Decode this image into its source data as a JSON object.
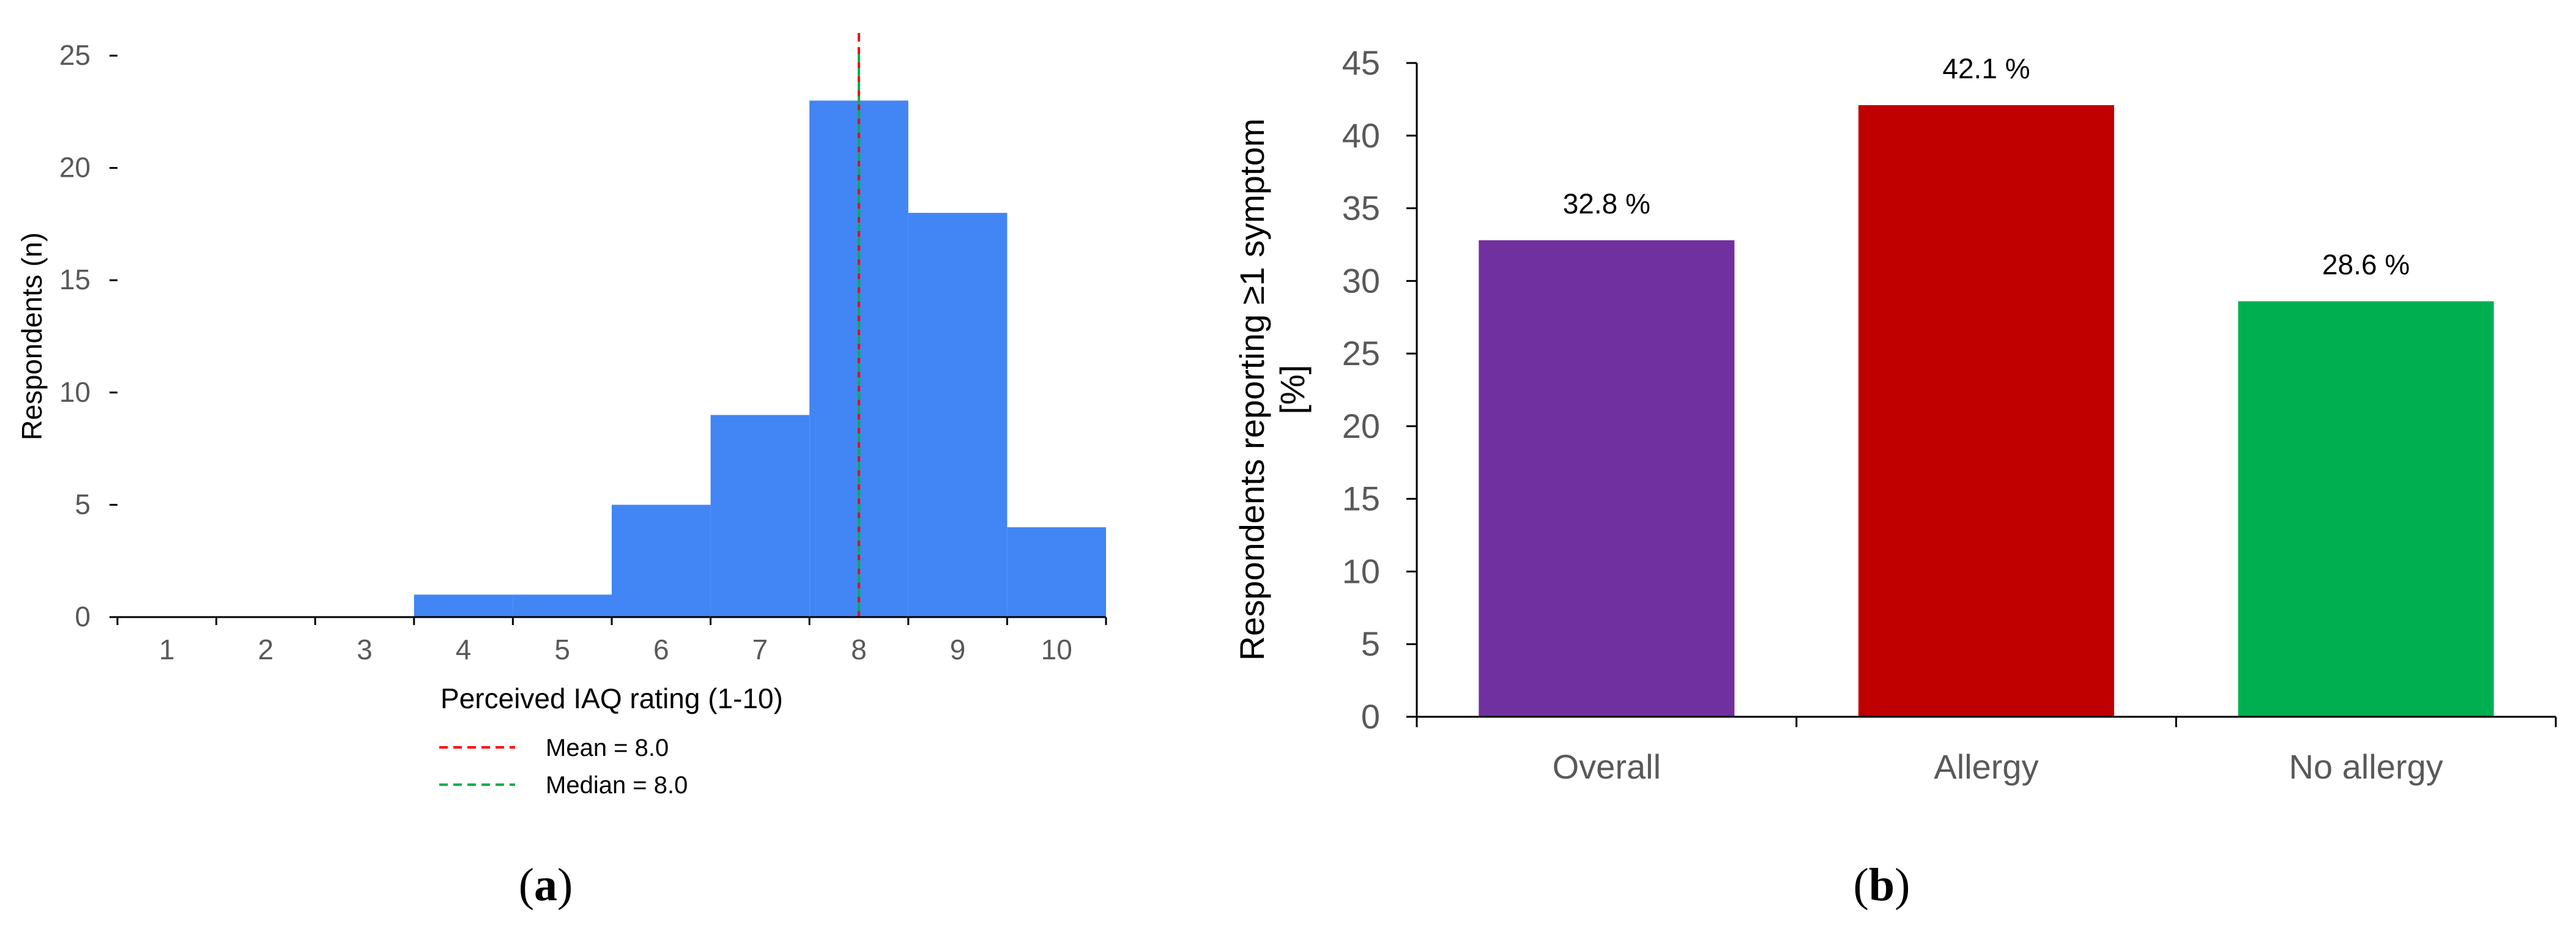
{
  "chart_data": [
    {
      "type": "bar",
      "panel_label": "a",
      "histogram": true,
      "categories": [
        "1",
        "2",
        "3",
        "4",
        "5",
        "6",
        "7",
        "8",
        "9",
        "10"
      ],
      "values": [
        0,
        0,
        0,
        1,
        1,
        5,
        9,
        23,
        18,
        4
      ],
      "title": "",
      "xlabel": "Perceived IAQ rating (1-10)",
      "ylabel": "Respondents (n)",
      "ylim": [
        0,
        25
      ],
      "yticks": [
        "0",
        "5",
        "10",
        "15",
        "20",
        "25"
      ],
      "grid": false,
      "bar_color": "#4285F4",
      "reference_lines": [
        {
          "label": "Mean = 8.0",
          "value": 8.0,
          "color": "#FF0000"
        },
        {
          "label": "Median = 8.0",
          "value": 8.0,
          "color": "#00B050"
        }
      ],
      "legend_position": "bottom-center"
    },
    {
      "type": "bar",
      "panel_label": "b",
      "categories": [
        "Overall",
        "Allergy",
        "No allergy"
      ],
      "values": [
        32.8,
        42.1,
        28.6
      ],
      "data_labels": [
        "32.8 %",
        "42.1 %",
        "28.6 %"
      ],
      "colors": [
        "#7030A0",
        "#C00000",
        "#00B050"
      ],
      "title": "",
      "xlabel": "",
      "ylabel_lines": [
        "Respondents reporting ≥1 symptom",
        "[%]"
      ],
      "ylim": [
        0,
        45
      ],
      "yticks": [
        "0",
        "5",
        "10",
        "15",
        "20",
        "25",
        "30",
        "35",
        "40",
        "45"
      ],
      "grid": false
    }
  ]
}
